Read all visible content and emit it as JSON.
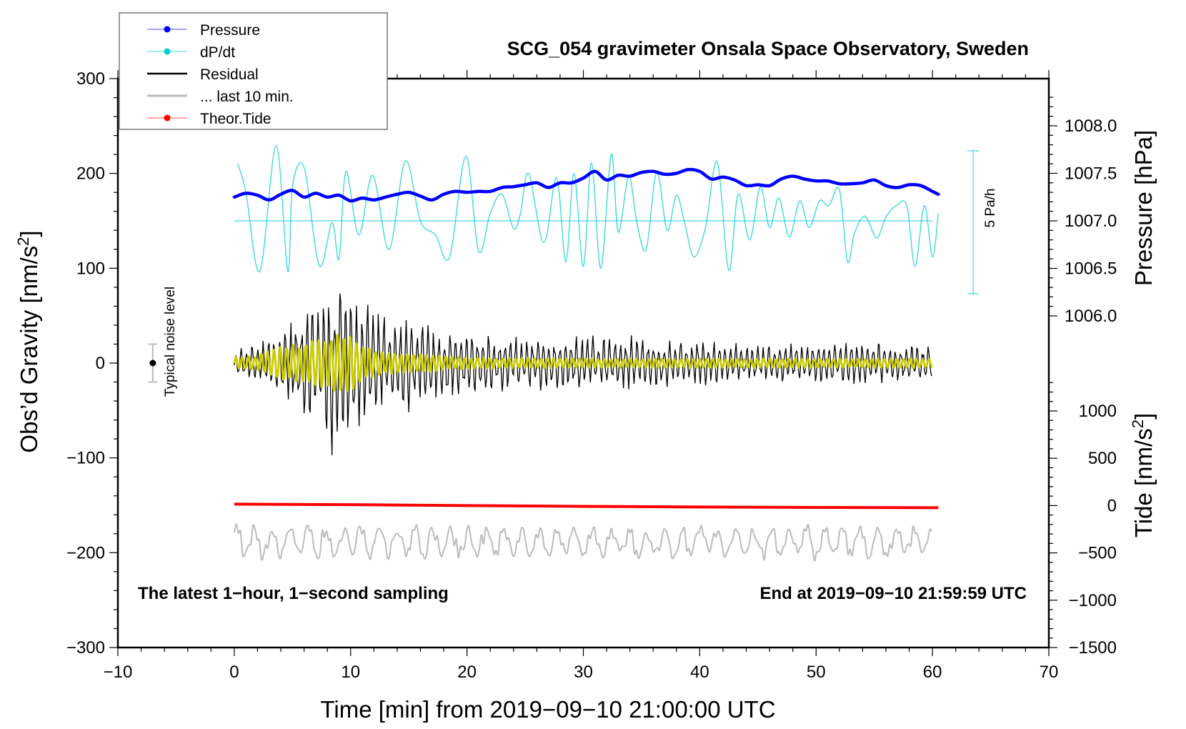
{
  "chart_data": {
    "type": "line",
    "title": "SCG_054 gravimeter Onsala Space Observatory, Sweden",
    "xlabel": "Time [min] from 2019−09−10 21:00:00 UTC",
    "xlim": [
      -10,
      70
    ],
    "x_ticks": [
      -10,
      0,
      10,
      20,
      30,
      40,
      50,
      60,
      70
    ],
    "x_tick_labels": [
      "−10",
      "0",
      "10",
      "20",
      "30",
      "40",
      "50",
      "60",
      "70"
    ],
    "y_left": {
      "label": "Obs’d Gravity [nm/s²]",
      "label_main": "Obs’d Gravity [nm/s",
      "label_sup": "2",
      "label_end": "]",
      "lim": [
        -300,
        300
      ],
      "ticks": [
        -300,
        -200,
        -100,
        0,
        100,
        200,
        300
      ],
      "tick_labels": [
        "−300",
        "−200",
        "−100",
        "0",
        "100",
        "200",
        "300"
      ]
    },
    "y_right_pressure": {
      "label": "Pressure [hPa]",
      "ticks": [
        1006.0,
        1006.5,
        1007.0,
        1007.5,
        1008.0
      ],
      "tick_labels": [
        "1006.0",
        "1006.5",
        "1007.0",
        "1007.5",
        "1008.0"
      ]
    },
    "y_right_tide": {
      "label": "Tide [nm/s²]",
      "label_main": "Tide [nm/s",
      "label_sup": "2",
      "label_end": "]",
      "ticks": [
        -1500,
        -1000,
        -500,
        0,
        500,
        1000
      ],
      "tick_labels": [
        "−1500",
        "−1000",
        "−500",
        "0",
        "500",
        "1000"
      ]
    },
    "legend": {
      "position": "top-left",
      "entries": [
        {
          "label": "Pressure",
          "color": "#0000ff",
          "marker": true
        },
        {
          "label": "dP/dt",
          "color": "#00cccc",
          "marker": true
        },
        {
          "label": "Residual",
          "color": "#000000",
          "marker": false
        },
        {
          "label": "... last 10 min.",
          "color": "#bbbbbb",
          "marker": false
        },
        {
          "label": "Theor.Tide",
          "color": "#ff0000",
          "marker": true
        }
      ]
    },
    "annotations": {
      "bottom_left": "The latest 1−hour, 1−second sampling",
      "bottom_right": "End at 2019−09−10 21:59:59 UTC",
      "noise_label": "Typical noise level",
      "noise_level_range": [
        -20,
        20
      ],
      "dpdt_scale_label": "5 Pa/h",
      "dpdt_zero_pressure_equiv": 1007.0
    },
    "series": [
      {
        "name": "Pressure",
        "axis": "pressure_hPa",
        "color": "#0000ff",
        "x": [
          0,
          1,
          2,
          3,
          4,
          5,
          6,
          7,
          8,
          9,
          10,
          11,
          12,
          13,
          14,
          15,
          16,
          17,
          18,
          19,
          20,
          21,
          22,
          23,
          24,
          25,
          26,
          27,
          28,
          29,
          30,
          31,
          32,
          33,
          34,
          35,
          36,
          37,
          38,
          39,
          40,
          41,
          42,
          43,
          44,
          45,
          46,
          47,
          48,
          49,
          50,
          51,
          52,
          53,
          54,
          55,
          56,
          57,
          58,
          59,
          60,
          60.5
        ],
        "values": [
          1007.25,
          1007.29,
          1007.27,
          1007.22,
          1007.28,
          1007.32,
          1007.25,
          1007.29,
          1007.25,
          1007.27,
          1007.21,
          1007.24,
          1007.22,
          1007.25,
          1007.28,
          1007.3,
          1007.26,
          1007.22,
          1007.28,
          1007.31,
          1007.3,
          1007.31,
          1007.31,
          1007.35,
          1007.36,
          1007.38,
          1007.4,
          1007.35,
          1007.4,
          1007.4,
          1007.45,
          1007.52,
          1007.43,
          1007.48,
          1007.47,
          1007.51,
          1007.52,
          1007.49,
          1007.5,
          1007.54,
          1007.52,
          1007.44,
          1007.46,
          1007.43,
          1007.37,
          1007.38,
          1007.37,
          1007.44,
          1007.47,
          1007.44,
          1007.42,
          1007.42,
          1007.39,
          1007.39,
          1007.4,
          1007.43,
          1007.37,
          1007.35,
          1007.38,
          1007.37,
          1007.31,
          1007.28
        ]
      },
      {
        "name": "dP/dt",
        "axis": "pressure_equiv",
        "color": "#00cccc",
        "x": [
          0.3,
          1.0,
          2.2,
          3.6,
          4.6,
          5.0,
          6.0,
          7.3,
          8.4,
          9.0,
          9.6,
          10.7,
          11.9,
          13.3,
          14.7,
          16.0,
          17.3,
          18.5,
          19.9,
          21.0,
          22.0,
          23.0,
          24.0,
          24.6,
          25.3,
          26.6,
          27.7,
          28.5,
          29.2,
          30.0,
          30.7,
          31.5,
          32.4,
          33.0,
          33.9,
          34.6,
          35.4,
          36.3,
          37.2,
          38.0,
          38.7,
          39.5,
          40.5,
          41.5,
          42.5,
          43.3,
          44.3,
          45.2,
          46.0,
          46.8,
          47.7,
          48.6,
          49.4,
          50.3,
          51.1,
          52.0,
          52.7,
          53.3,
          54.2,
          55.2,
          56.0,
          56.9,
          57.8,
          58.5,
          59.3,
          60.0,
          60.5
        ],
        "values": [
          1007.6,
          1007.3,
          1006.47,
          1007.79,
          1006.47,
          1007.36,
          1007.56,
          1006.53,
          1006.98,
          1006.6,
          1007.52,
          1006.85,
          1007.48,
          1006.7,
          1007.63,
          1007.0,
          1006.85,
          1006.62,
          1007.68,
          1006.68,
          1007.08,
          1007.28,
          1006.92,
          1007.08,
          1007.5,
          1006.77,
          1007.45,
          1006.57,
          1007.5,
          1006.52,
          1007.61,
          1006.5,
          1007.7,
          1006.88,
          1007.47,
          1006.98,
          1006.7,
          1007.51,
          1006.9,
          1007.27,
          1006.98,
          1006.62,
          1006.93,
          1007.62,
          1006.48,
          1007.28,
          1006.8,
          1007.36,
          1006.93,
          1007.24,
          1006.83,
          1007.21,
          1006.93,
          1007.21,
          1007.16,
          1007.33,
          1006.57,
          1006.87,
          1007.05,
          1006.82,
          1007.04,
          1007.16,
          1007.16,
          1006.52,
          1007.16,
          1006.62,
          1007.08
        ]
      },
      {
        "name": "dP/dt zero line",
        "axis": "pressure_equiv",
        "color": "#00cccc",
        "x": [
          0,
          60
        ],
        "values": [
          1007.0,
          1007.0
        ]
      },
      {
        "name": "Residual",
        "axis": "gravity_nm_s2",
        "color": "#000000",
        "envelope_x": [
          0,
          2,
          4,
          6,
          7,
          8,
          9,
          10,
          11,
          12,
          14,
          17,
          20,
          25,
          30,
          35,
          40,
          45,
          50,
          55,
          60
        ],
        "envelope_max": [
          18,
          22,
          42,
          62,
          80,
          88,
          100,
          88,
          70,
          60,
          48,
          40,
          36,
          30,
          30,
          30,
          26,
          20,
          22,
          24,
          18
        ],
        "envelope_min": [
          -14,
          -20,
          -42,
          -62,
          -80,
          -100,
          -112,
          -90,
          -72,
          -62,
          -52,
          -56,
          -40,
          -30,
          -30,
          -30,
          -26,
          -20,
          -24,
          -28,
          -18
        ]
      },
      {
        "name": "Residual filtered",
        "axis": "gravity_nm_s2",
        "color": "#cccc00",
        "envelope_x": [
          0,
          2,
          4,
          6,
          8,
          9.5,
          11,
          13,
          16,
          20,
          30,
          40,
          50,
          60
        ],
        "envelope_max": [
          6,
          8,
          20,
          22,
          28,
          36,
          20,
          12,
          10,
          6,
          5,
          5,
          5,
          5
        ],
        "envelope_min": [
          -6,
          -8,
          -20,
          -22,
          -28,
          -34,
          -20,
          -12,
          -10,
          -6,
          -5,
          -5,
          -5,
          -5
        ]
      },
      {
        "name": "... last 10 min.",
        "axis": "gravity_nm_s2",
        "color": "#bbbbbb",
        "x_range": [
          0,
          60
        ],
        "mean": -185,
        "amplitude": 15
      },
      {
        "name": "Theor.Tide",
        "axis": "tide_nm_s2",
        "color": "#ff0000",
        "x": [
          0,
          10,
          20,
          30,
          40,
          50,
          60.5
        ],
        "values": [
          15,
          10,
          0,
          -8,
          -15,
          -20,
          -23
        ]
      }
    ]
  }
}
